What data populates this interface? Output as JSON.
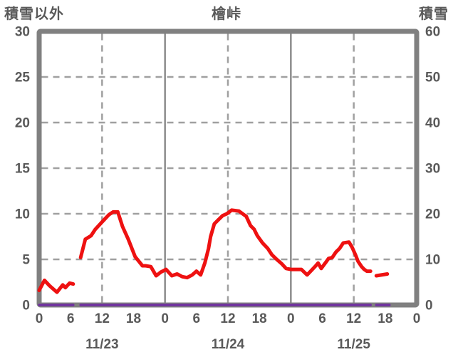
{
  "header": {
    "left_axis_title": "積雪以外",
    "chart_title": "檜峠",
    "right_axis_title": "積雪"
  },
  "chart_data": {
    "type": "line",
    "title": "檜峠",
    "x_axis": {
      "unit": "hour",
      "range": [
        0,
        72
      ],
      "tick_hours": [
        0,
        6,
        12,
        18,
        24,
        30,
        36,
        42,
        48,
        54,
        60,
        66,
        72
      ],
      "tick_labels": [
        "0",
        "6",
        "12",
        "18",
        "0",
        "6",
        "12",
        "18",
        "0",
        "6",
        "12",
        "18",
        "0"
      ],
      "date_labels": [
        {
          "label": "11/23",
          "hour": 12
        },
        {
          "label": "11/24",
          "hour": 36
        },
        {
          "label": "11/25",
          "hour": 60
        }
      ]
    },
    "left_axis": {
      "title": "積雪以外",
      "range": [
        0,
        30
      ],
      "ticks": [
        0,
        5,
        10,
        15,
        20,
        25,
        30
      ]
    },
    "right_axis": {
      "title": "積雪",
      "range": [
        0,
        60
      ],
      "ticks": [
        0,
        10,
        20,
        30,
        40,
        50,
        60
      ]
    },
    "grid": {
      "horizontal_dashed_left_values": [
        5,
        10,
        15,
        20,
        25
      ],
      "vertical_dashed_hours": [
        12,
        36,
        60
      ],
      "vertical_solid_hours": [
        24,
        48
      ]
    },
    "series": [
      {
        "name": "積雪以外",
        "axis": "left",
        "color": "#ee1111",
        "width": 5,
        "points": [
          [
            0,
            1.6
          ],
          [
            1,
            2.7
          ],
          [
            2,
            2.1
          ],
          [
            3.4,
            1.4
          ],
          [
            4.5,
            2.2
          ],
          [
            5,
            1.9
          ],
          [
            5.8,
            2.4
          ],
          [
            6.5,
            2.3
          ],
          null,
          [
            7.9,
            5.2
          ],
          [
            8.8,
            7.2
          ],
          [
            9.9,
            7.6
          ],
          [
            10.7,
            8.3
          ],
          [
            12,
            9.1
          ],
          [
            13.3,
            9.9
          ],
          [
            14.1,
            10.2
          ],
          [
            15,
            10.2
          ],
          [
            15.9,
            8.6
          ],
          [
            17,
            7.2
          ],
          [
            18.3,
            5.3
          ],
          [
            19.7,
            4.3
          ],
          [
            20.3,
            4.3
          ],
          [
            21.3,
            4.2
          ],
          [
            22.3,
            3.2
          ],
          [
            23.2,
            3.6
          ],
          [
            24.2,
            3.9
          ],
          [
            25.3,
            3.2
          ],
          [
            26.3,
            3.4
          ],
          [
            27.3,
            3.1
          ],
          [
            28.2,
            3.0
          ],
          [
            29.2,
            3.3
          ],
          [
            30,
            3.7
          ],
          [
            30.8,
            3.3
          ],
          [
            31.6,
            4.6
          ],
          [
            32.3,
            6.2
          ],
          [
            32.7,
            7.5
          ],
          [
            33.4,
            8.9
          ],
          [
            34.1,
            9.3
          ],
          [
            35,
            9.8
          ],
          [
            35.8,
            10.0
          ],
          [
            36.7,
            10.4
          ],
          [
            38.1,
            10.3
          ],
          [
            39.5,
            9.7
          ],
          [
            40.3,
            8.7
          ],
          [
            41,
            8.3
          ],
          [
            41.6,
            7.6
          ],
          [
            42.6,
            6.8
          ],
          [
            43.6,
            6.2
          ],
          [
            44.4,
            5.5
          ],
          [
            45.3,
            5.0
          ],
          [
            46.3,
            4.5
          ],
          [
            47.1,
            4.0
          ],
          [
            48,
            3.9
          ],
          [
            50,
            3.9
          ],
          [
            51.1,
            3.3
          ],
          [
            52.6,
            4.2
          ],
          [
            53.2,
            4.6
          ],
          [
            53.8,
            4.0
          ],
          [
            54.7,
            4.7
          ],
          [
            55.2,
            5.1
          ],
          [
            55.9,
            5.2
          ],
          [
            56.6,
            5.8
          ],
          [
            57.3,
            6.2
          ],
          [
            58,
            6.8
          ],
          [
            59.1,
            6.9
          ],
          [
            59.7,
            6.3
          ],
          [
            60.4,
            5.4
          ],
          [
            60.8,
            4.8
          ],
          [
            61.5,
            4.2
          ],
          [
            62,
            3.9
          ],
          [
            62.5,
            3.7
          ],
          [
            63.2,
            3.7
          ],
          null,
          [
            64.3,
            3.2
          ],
          [
            66.4,
            3.4
          ]
        ]
      },
      {
        "name": "積雪",
        "axis": "right",
        "color": "#7030a0",
        "width": 3.5,
        "points": [
          [
            0,
            0
          ],
          [
            6.5,
            0
          ],
          null,
          [
            7.9,
            0
          ],
          [
            63.2,
            0
          ],
          null,
          [
            64.3,
            0
          ],
          [
            66.8,
            0
          ]
        ]
      }
    ],
    "style": {
      "frame_color": "#808080",
      "grid_dashed_color": "#a0a0a0",
      "grid_solid_color": "#8c8c8c",
      "text_color": "#595959"
    }
  }
}
